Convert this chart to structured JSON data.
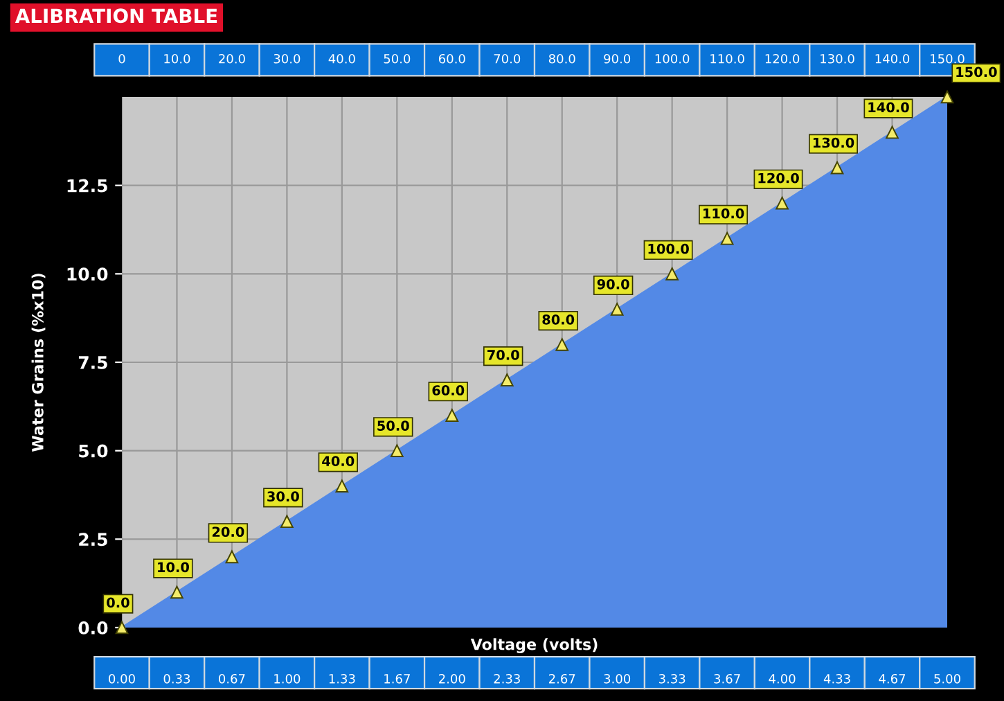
{
  "chart_data": {
    "type": "area",
    "title": "ALIBRATION TABLE",
    "xlabel": "Voltage (volts)",
    "ylabel": "Water Grains (%x10)",
    "categories": [
      "0.00",
      "0.33",
      "0.67",
      "1.00",
      "1.33",
      "1.67",
      "2.00",
      "2.33",
      "2.67",
      "3.00",
      "3.33",
      "3.67",
      "4.00",
      "4.33",
      "4.67",
      "5.00"
    ],
    "series": [
      {
        "color": "#5389e6",
        "values": [
          0,
          1,
          2,
          3,
          4,
          5,
          6,
          7,
          8,
          9,
          10,
          11,
          12,
          13,
          14,
          15
        ]
      }
    ],
    "annotations": [
      "0",
      "10.0",
      "20.0",
      "30.0",
      "40.0",
      "50.0",
      "60.0",
      "70.0",
      "80.0",
      "90.0",
      "100.0",
      "110.0",
      "120.0",
      "130.0",
      "140.0",
      "150.0",
      {
        "text": "0.0",
        "x": "0.00",
        "y": 0
      },
      {
        "text": "10.0",
        "x": "0.33",
        "y": 1
      },
      {
        "text": "20.0",
        "x": "0.67",
        "y": 2
      },
      {
        "text": "30.0",
        "x": "1.00",
        "y": 3
      },
      {
        "text": "40.0",
        "x": "1.33",
        "y": 4
      },
      {
        "text": "50.0",
        "x": "1.67",
        "y": 5
      },
      {
        "text": "60.0",
        "x": "2.00",
        "y": 6
      },
      {
        "text": "70.0",
        "x": "2.33",
        "y": 7
      },
      {
        "text": "80.0",
        "x": "2.67",
        "y": 8
      },
      {
        "text": "90.0",
        "x": "3.00",
        "y": 9
      },
      {
        "text": "100.0",
        "x": "3.33",
        "y": 10
      },
      {
        "text": "110.0",
        "x": "3.67",
        "y": 11
      },
      {
        "text": "120.0",
        "x": "4.00",
        "y": 12
      },
      {
        "text": "130.0",
        "x": "4.33",
        "y": 13
      },
      {
        "text": "140.0",
        "x": "4.67",
        "y": 14
      },
      {
        "text": "150.0",
        "x": "5.00",
        "y": 15
      }
    ],
    "ylim": [
      0,
      15
    ],
    "yticks": [
      {
        "value": 0,
        "label": "0.0"
      },
      {
        "value": 2.5,
        "label": "2.5"
      },
      {
        "value": 5,
        "label": "5.0"
      },
      {
        "value": 7.5,
        "label": "7.5"
      },
      {
        "value": 10,
        "label": "10.0"
      },
      {
        "value": 12.5,
        "label": "12.5"
      }
    ],
    "grid": true,
    "marker": "triangle"
  }
}
